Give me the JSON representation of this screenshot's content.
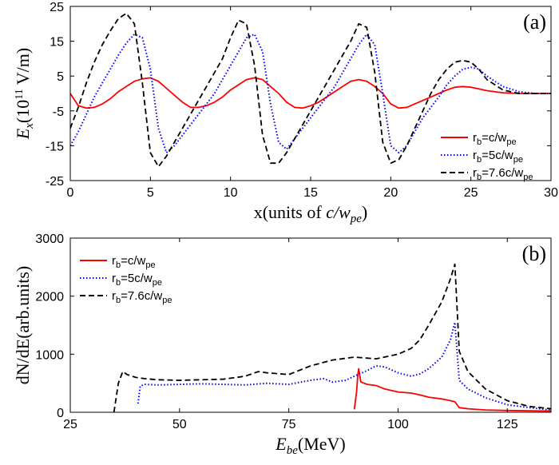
{
  "chart_data": [
    {
      "type": "line",
      "panel_label": "(a)",
      "xlabel": "x(units of c/w_pe)",
      "ylabel": "E_x(10^11 V/m)",
      "xlim": [
        0,
        30
      ],
      "ylim": [
        -25,
        25
      ],
      "xticks": [
        0,
        5,
        10,
        15,
        20,
        25,
        30
      ],
      "yticks": [
        -25,
        -15,
        -5,
        5,
        15,
        25
      ],
      "xtick_labels": [
        "0",
        "5",
        "10",
        "15",
        "20",
        "25",
        "30"
      ],
      "ytick_labels": [
        "-25",
        "-15",
        "-5",
        "5",
        "15",
        "25"
      ],
      "legend_position": "lower-right",
      "series": [
        {
          "name": "r_b=c/w_pe",
          "name_main": "r",
          "name_sub": "b",
          "name_rest": "=c/w",
          "name_sub2": "pe",
          "color": "#ff0000",
          "dash": "solid",
          "x": [
            0,
            0.5,
            1,
            1.5,
            2,
            2.5,
            3,
            3.5,
            4,
            4.5,
            5,
            5.5,
            6,
            6.5,
            7,
            7.5,
            8,
            8.5,
            9,
            9.5,
            10,
            10.5,
            11,
            11.5,
            12,
            12.5,
            13,
            13.5,
            14,
            14.5,
            15,
            15.5,
            16,
            16.5,
            17,
            17.5,
            18,
            18.5,
            19,
            19.5,
            20,
            20.5,
            21,
            21.5,
            22,
            22.5,
            23,
            23.5,
            24,
            24.5,
            25,
            25.5,
            26,
            27,
            28,
            29,
            30
          ],
          "y": [
            0,
            -3.5,
            -4.2,
            -4,
            -3,
            -1.5,
            0.5,
            2,
            3.5,
            4.2,
            4.5,
            3.5,
            1.5,
            -0.5,
            -2.5,
            -4,
            -4,
            -3.5,
            -2.5,
            -1,
            1,
            2.5,
            4,
            4.5,
            4,
            2,
            0,
            -2.5,
            -4,
            -4.2,
            -3.5,
            -2.5,
            -1,
            0.5,
            2,
            3.5,
            4,
            3.5,
            2,
            0,
            -3,
            -4.2,
            -4,
            -3,
            -2,
            -1,
            0,
            1,
            1.8,
            2,
            1.8,
            1.3,
            0.8,
            0.2,
            0,
            0,
            0
          ]
        },
        {
          "name": "r_b=5c/w_pe",
          "name_main": "r",
          "name_sub": "b",
          "name_rest": "=5c/w",
          "name_sub2": "pe",
          "color": "#0000ff",
          "dash": "dotted",
          "x": [
            0,
            0.5,
            1,
            1.5,
            2,
            2.5,
            3,
            3.5,
            4,
            4.5,
            5,
            5.5,
            6,
            6.5,
            7,
            7.5,
            8,
            8.5,
            9,
            9.5,
            10,
            10.5,
            11,
            11.5,
            12,
            12.5,
            13,
            13.5,
            14,
            14.5,
            15,
            15.5,
            16,
            16.5,
            17,
            17.5,
            18,
            18.5,
            19,
            19.5,
            20,
            20.5,
            21,
            21.5,
            22,
            22.5,
            23,
            23.5,
            24,
            24.5,
            25,
            25.5,
            26,
            27,
            28,
            29,
            30
          ],
          "y": [
            -15,
            -11,
            -6,
            -1,
            3,
            7,
            11,
            14.5,
            17,
            16,
            7,
            -10,
            -17,
            -15,
            -12,
            -9,
            -6,
            -3,
            0,
            4,
            8,
            12,
            16,
            17,
            12,
            -3,
            -14,
            -16,
            -13,
            -10,
            -7,
            -4,
            -1,
            2,
            6,
            10,
            14,
            17,
            14,
            0,
            -15,
            -17,
            -15,
            -11,
            -7,
            -4,
            -1,
            2.5,
            5,
            7,
            7.5,
            7,
            5,
            2,
            0.5,
            0,
            0
          ]
        },
        {
          "name": "r_b=7.6c/w_pe",
          "name_main": "r",
          "name_sub": "b",
          "name_rest": "=7.6c/w",
          "name_sub2": "pe",
          "color": "#000000",
          "dash": "dashed",
          "x": [
            0,
            0.5,
            1,
            1.5,
            2,
            2.5,
            3,
            3.5,
            4,
            4.5,
            5,
            5.5,
            6,
            6.5,
            7,
            7.5,
            8,
            8.5,
            9,
            9.5,
            10,
            10.5,
            11,
            11.5,
            12,
            12.5,
            13,
            13.5,
            14,
            14.5,
            15,
            15.5,
            16,
            16.5,
            17,
            17.5,
            18,
            18.5,
            19,
            19.5,
            20,
            20.5,
            21,
            21.5,
            22,
            22.5,
            23,
            23.5,
            24,
            24.5,
            25,
            25.5,
            26,
            27,
            28,
            29,
            30
          ],
          "y": [
            -10,
            -4,
            3,
            9,
            14,
            18,
            21.5,
            23,
            20,
            3,
            -17,
            -21,
            -18,
            -14,
            -10,
            -6,
            -2,
            2,
            6,
            10,
            16,
            21,
            20,
            8,
            -12,
            -20,
            -20,
            -17,
            -13,
            -9,
            -5,
            -1,
            3,
            7,
            11,
            15,
            20,
            19,
            6,
            -14,
            -20,
            -19,
            -15,
            -10,
            -5,
            0,
            4,
            7,
            9,
            9.5,
            9,
            7,
            4,
            1,
            0,
            0,
            0
          ]
        }
      ]
    },
    {
      "type": "line",
      "panel_label": "(b)",
      "xlabel": "E_be(MeV)",
      "ylabel": "dN/dE(arb.units)",
      "xlim": [
        25,
        135
      ],
      "ylim": [
        0,
        3000
      ],
      "xticks": [
        25,
        50,
        75,
        100,
        125
      ],
      "yticks": [
        0,
        1000,
        2000,
        3000
      ],
      "xtick_labels": [
        "25",
        "50",
        "75",
        "100",
        "125"
      ],
      "ytick_labels": [
        "0",
        "1000",
        "2000",
        "3000"
      ],
      "legend_position": "top-left",
      "series": [
        {
          "name": "r_b=c/w_pe",
          "name_main": "r",
          "name_sub": "b",
          "name_rest": "=c/w",
          "name_sub2": "pe",
          "color": "#ff0000",
          "dash": "solid",
          "x": [
            90,
            90.5,
            90.8,
            91,
            91.5,
            93,
            95,
            97,
            100,
            103,
            105,
            107,
            110,
            112,
            113,
            114,
            116,
            120,
            125,
            130,
            135
          ],
          "y": [
            50,
            350,
            650,
            750,
            520,
            480,
            460,
            400,
            350,
            330,
            300,
            260,
            230,
            200,
            180,
            80,
            60,
            40,
            30,
            25,
            20
          ]
        },
        {
          "name": "r_b=5c/w_pe",
          "name_main": "r",
          "name_sub": "b",
          "name_rest": "=5c/w",
          "name_sub2": "pe",
          "color": "#0000ff",
          "dash": "dotted",
          "x": [
            40.5,
            41,
            42,
            45,
            50,
            55,
            60,
            65,
            70,
            75,
            80,
            83,
            85,
            88,
            90,
            93,
            95,
            97,
            100,
            103,
            105,
            107,
            110,
            112,
            113,
            114,
            116,
            120,
            125,
            130,
            135
          ],
          "y": [
            150,
            450,
            480,
            470,
            480,
            490,
            480,
            470,
            500,
            480,
            550,
            580,
            520,
            550,
            620,
            720,
            800,
            780,
            680,
            620,
            660,
            750,
            950,
            1250,
            1550,
            550,
            400,
            250,
            130,
            80,
            40
          ]
        },
        {
          "name": "r_b=7.6c/w_pe",
          "name_main": "r",
          "name_sub": "b",
          "name_rest": "=7.6c/w",
          "name_sub2": "pe",
          "color": "#000000",
          "dash": "dashed",
          "x": [
            35,
            36,
            37,
            38,
            40,
            42,
            45,
            50,
            55,
            60,
            65,
            68,
            70,
            75,
            80,
            85,
            90,
            95,
            100,
            103,
            105,
            107,
            110,
            112,
            113,
            114,
            116,
            120,
            125,
            130,
            135
          ],
          "y": [
            0,
            500,
            700,
            650,
            600,
            580,
            560,
            550,
            560,
            570,
            620,
            700,
            680,
            650,
            800,
            900,
            950,
            920,
            1000,
            1100,
            1250,
            1500,
            1900,
            2300,
            2550,
            1050,
            700,
            400,
            200,
            100,
            60
          ]
        }
      ]
    }
  ]
}
